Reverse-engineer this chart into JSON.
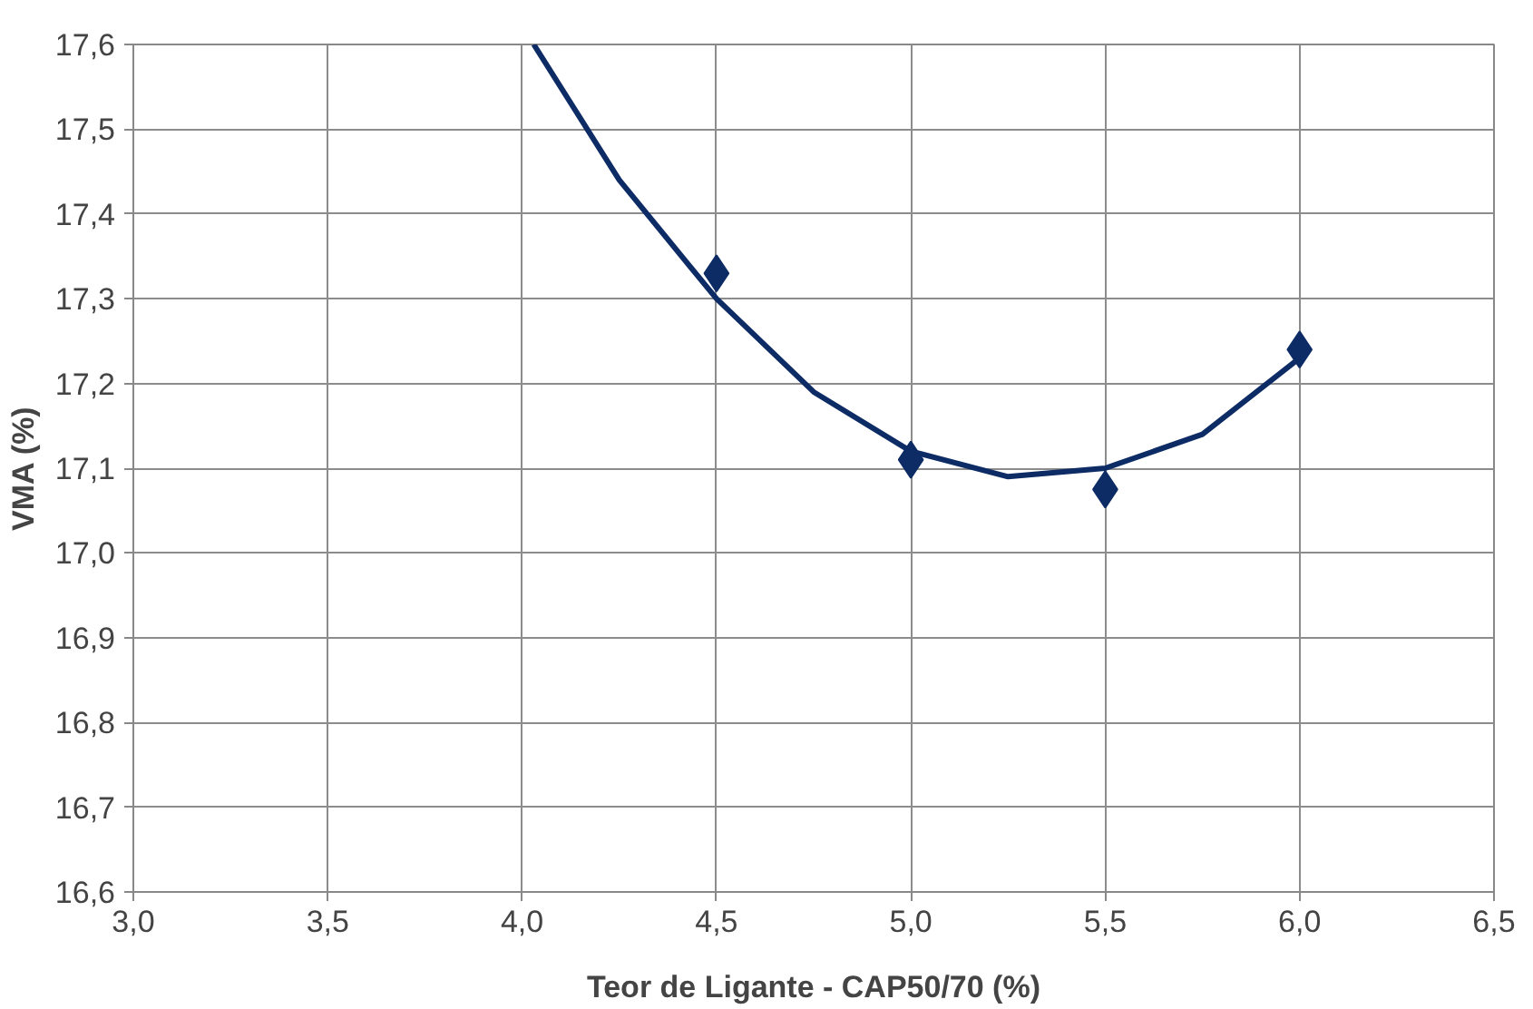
{
  "chart_data": {
    "type": "line",
    "xlabel": "Teor de Ligante - CAP50/70 (%)",
    "ylabel": "VMA (%)",
    "xlim": [
      3.0,
      6.5
    ],
    "ylim": [
      16.6,
      17.6
    ],
    "xticks": [
      {
        "value": 3.0,
        "label": "3,0"
      },
      {
        "value": 3.5,
        "label": "3,5"
      },
      {
        "value": 4.0,
        "label": "4,0"
      },
      {
        "value": 4.5,
        "label": "4,5"
      },
      {
        "value": 5.0,
        "label": "5,0"
      },
      {
        "value": 5.5,
        "label": "5,5"
      },
      {
        "value": 6.0,
        "label": "6,0"
      },
      {
        "value": 6.5,
        "label": "6,5"
      }
    ],
    "yticks": [
      {
        "value": 16.6,
        "label": "16,6"
      },
      {
        "value": 16.7,
        "label": "16,7"
      },
      {
        "value": 16.8,
        "label": "16,8"
      },
      {
        "value": 16.9,
        "label": "16,9"
      },
      {
        "value": 17.0,
        "label": "17,0"
      },
      {
        "value": 17.1,
        "label": "17,1"
      },
      {
        "value": 17.2,
        "label": "17,2"
      },
      {
        "value": 17.3,
        "label": "17,3"
      },
      {
        "value": 17.4,
        "label": "17,4"
      },
      {
        "value": 17.5,
        "label": "17,5"
      },
      {
        "value": 17.6,
        "label": "17,6"
      }
    ],
    "grid": true,
    "marker": "diamond",
    "series": [
      {
        "type": "scatter",
        "color": "#0d2b64",
        "x": [
          4.5,
          5.0,
          5.5,
          6.0
        ],
        "values": [
          17.33,
          17.11,
          17.075,
          17.24
        ]
      },
      {
        "color": "#0d2b64",
        "marker": "none",
        "x": [
          4.03,
          4.25,
          4.5,
          4.75,
          5.0,
          5.25,
          5.5,
          5.75,
          6.0
        ],
        "values": [
          17.6,
          17.44,
          17.3,
          17.19,
          17.12,
          17.09,
          17.1,
          17.14,
          17.23
        ]
      }
    ]
  }
}
